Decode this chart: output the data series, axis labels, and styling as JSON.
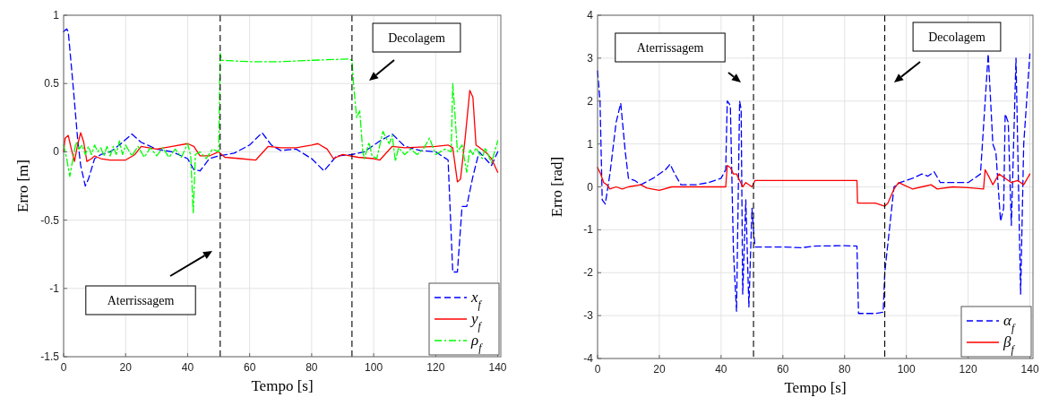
{
  "chart_data": [
    {
      "type": "line",
      "xlabel": "Tempo [s]",
      "ylabel": "Erro [m]",
      "xlim": [
        0,
        141
      ],
      "ylim": [
        -1.5,
        1
      ],
      "xticks": [
        0,
        20,
        40,
        60,
        80,
        100,
        120,
        140
      ],
      "yticks": [
        -1.5,
        -1,
        -0.5,
        0,
        0.5,
        1
      ],
      "grid": true,
      "legend": "bottom right",
      "series": [
        {
          "name": "x$_{f}$",
          "color": "#0000ff",
          "line_style": "dashed",
          "x": [
            0,
            1,
            1.5,
            3,
            4.5,
            5.5,
            7,
            8,
            10,
            12,
            15,
            18,
            22,
            25,
            30,
            35,
            40,
            42,
            44,
            47,
            50,
            55,
            60,
            64,
            67,
            70,
            75,
            80,
            84,
            88,
            93,
            97,
            102,
            106,
            110,
            115,
            120,
            124,
            125.5,
            127,
            128.5,
            130,
            132,
            134,
            136,
            138,
            140
          ],
          "values": [
            0.88,
            0.9,
            0.88,
            0.5,
            0.1,
            -0.1,
            -0.25,
            -0.2,
            -0.05,
            -0.02,
            0,
            0.05,
            0.13,
            0.07,
            0.02,
            0,
            -0.05,
            -0.13,
            -0.14,
            -0.05,
            -0.03,
            -0.01,
            0.05,
            0.14,
            0.05,
            0.01,
            0.02,
            -0.05,
            -0.14,
            -0.03,
            -0.02,
            0,
            0.08,
            0.13,
            0.04,
            0.01,
            0,
            -0.06,
            -0.88,
            -0.88,
            -0.4,
            -0.4,
            -0.18,
            0,
            -0.05,
            -0.1,
            0
          ]
        },
        {
          "name": "y$_{f}$",
          "color": "#ff0000",
          "line_style": "solid",
          "x": [
            0,
            0.5,
            1.5,
            2.5,
            3.5,
            4.5,
            5.5,
            6.5,
            7.5,
            9,
            10,
            12,
            15,
            20,
            23,
            25,
            30,
            35,
            40,
            42,
            44,
            47,
            50,
            52,
            57,
            62,
            66,
            70,
            75,
            80,
            82,
            85,
            87,
            90,
            95,
            100,
            102,
            106,
            110,
            120,
            124,
            125.5,
            127,
            128,
            129.5,
            131,
            132,
            133,
            136,
            138,
            140
          ],
          "values": [
            0,
            0.1,
            0.12,
            0.02,
            -0.07,
            0.05,
            0.14,
            0.07,
            -0.07,
            -0.05,
            -0.03,
            -0.05,
            -0.06,
            -0.06,
            -0.02,
            0.04,
            0.02,
            0.04,
            0.06,
            0.04,
            -0.03,
            -0.03,
            0,
            -0.04,
            -0.05,
            -0.06,
            0.04,
            0.03,
            0.03,
            0.05,
            0.06,
            0.02,
            -0.05,
            -0.02,
            -0.04,
            -0.05,
            -0.06,
            0.04,
            0.03,
            0.04,
            0.05,
            0.03,
            -0.22,
            -0.2,
            0.1,
            0.45,
            0.4,
            0.05,
            0,
            -0.05,
            -0.15
          ]
        },
        {
          "name": "ρ$_{f}$",
          "color": "#00ff00",
          "line_style": "dashdot",
          "x": [
            0,
            1,
            2,
            3,
            4,
            5,
            6,
            7,
            8,
            9,
            10,
            11,
            12,
            13,
            14,
            15,
            16,
            17,
            18,
            19,
            20,
            22,
            24,
            26,
            28,
            30,
            32,
            34,
            36,
            38,
            40,
            41,
            41.8,
            42.5,
            44,
            46,
            48,
            50,
            50.5,
            51,
            60,
            70,
            80,
            92,
            93,
            93.5,
            94.5,
            95.5,
            96.5,
            97,
            98.5,
            99.5,
            101,
            102,
            103,
            104,
            105,
            106,
            107,
            108,
            110,
            112,
            114,
            116,
            118,
            120,
            123,
            125,
            125.5,
            126,
            127,
            128.5,
            130,
            131,
            132,
            133,
            135,
            136,
            138,
            140
          ],
          "values": [
            0.05,
            -0.05,
            -0.18,
            -0.05,
            0.07,
            0.02,
            0.05,
            -0.02,
            0.04,
            -0.02,
            0.05,
            0,
            0.03,
            -0.03,
            0.04,
            -0.03,
            0.04,
            -0.02,
            0.08,
            -0.02,
            0.05,
            -0.03,
            0.04,
            -0.04,
            0.03,
            -0.03,
            0.03,
            -0.04,
            0.02,
            -0.04,
            0.06,
            -0.03,
            -0.45,
            -0.02,
            0,
            -0.05,
            0.02,
            0,
            0.72,
            0.67,
            0.66,
            0.66,
            0.67,
            0.68,
            0.67,
            0.5,
            0.25,
            0.3,
            0,
            -0.05,
            0.07,
            -0.03,
            -0.05,
            0.05,
            0.15,
            0.1,
            0.06,
            0.12,
            -0.07,
            0.03,
            -0.02,
            0.02,
            -0.02,
            0.02,
            0.1,
            -0.02,
            0.02,
            0,
            0.5,
            0.35,
            0,
            0.05,
            -0.15,
            0.02,
            -0.02,
            0.03,
            -0.05,
            0.03,
            -0.08,
            0.08
          ]
        }
      ],
      "ref_lines": [
        {
          "axis": "x",
          "value": 50.5,
          "color": "#000000",
          "line_style": "dashed"
        },
        {
          "axis": "x",
          "value": 93,
          "color": "#000000",
          "line_style": "dashed"
        }
      ],
      "annotations": [
        "Aterrissagem",
        "Decolagem"
      ]
    },
    {
      "type": "line",
      "xlabel": "Tempo [s]",
      "ylabel": "Erro [rad]",
      "xlim": [
        0,
        141
      ],
      "ylim": [
        -4,
        4
      ],
      "xticks": [
        0,
        20,
        40,
        60,
        80,
        100,
        120,
        140
      ],
      "yticks": [
        -4,
        -3,
        -2,
        -1,
        0,
        1,
        2,
        3,
        4
      ],
      "grid": true,
      "legend": "bottom right",
      "series": [
        {
          "name": "α$_{f}$",
          "color": "#0000ff",
          "line_style": "dashed",
          "x": [
            0,
            0.8,
            1.5,
            2.5,
            4,
            6,
            7.5,
            9,
            10,
            12,
            14,
            18,
            22,
            23.5,
            25,
            27,
            32,
            36,
            40,
            41.5,
            42,
            43,
            44,
            45,
            46,
            46.5,
            47,
            48,
            49,
            50,
            50.5,
            51,
            60,
            66,
            70,
            80,
            84,
            84.5,
            90,
            92.5,
            93,
            94.5,
            96,
            98,
            102,
            105,
            107,
            109,
            111,
            115,
            120,
            124,
            126.5,
            127,
            128,
            129,
            130.5,
            131.5,
            132,
            133,
            134,
            135.5,
            136.5,
            137,
            138,
            139.5,
            140
          ],
          "values": [
            2.7,
            2,
            -0.3,
            -0.4,
            0.3,
            1.5,
            1.95,
            0.8,
            0.2,
            0.15,
            0.05,
            0.2,
            0.4,
            0.53,
            0.3,
            0.05,
            0.05,
            0.1,
            0.2,
            0.4,
            2,
            1.9,
            -1.5,
            -2.9,
            2,
            1.8,
            -2.5,
            -0.3,
            -2.8,
            -0.5,
            -1,
            -1.4,
            -1.4,
            -1.42,
            -1.38,
            -1.37,
            -1.38,
            -2.95,
            -2.95,
            -2.92,
            -2,
            -1,
            0,
            0.1,
            0.2,
            0.3,
            0.25,
            0.35,
            0.1,
            0.1,
            0.1,
            0.3,
            3.1,
            null,
            1,
            0.8,
            -0.8,
            -0.5,
            1.7,
            1.5,
            -0.9,
            3,
            null,
            -2.5,
            1,
            null,
            3.1
          ]
        },
        {
          "name": "β$_{f}$",
          "color": "#ff0000",
          "line_style": "solid",
          "x": [
            0,
            1,
            2,
            3,
            4,
            6,
            8,
            10,
            14,
            16,
            20,
            24,
            28,
            32,
            36,
            40,
            41.5,
            42,
            43,
            44,
            45,
            46,
            47,
            48,
            50,
            51,
            60,
            70,
            84,
            84.2,
            90,
            93,
            94,
            96,
            97.5,
            99,
            102,
            105,
            108,
            110,
            115,
            120,
            125,
            125.5,
            127,
            128,
            130,
            132,
            134,
            136,
            138,
            140
          ],
          "values": [
            0.45,
            0.3,
            0.1,
            0.05,
            -0.05,
            0,
            -0.05,
            0,
            0.05,
            -0.03,
            -0.08,
            0,
            0,
            0,
            0,
            0,
            0,
            0.5,
            0.45,
            0.3,
            0.3,
            0.15,
            0,
            0.1,
            0,
            0.15,
            0.15,
            0.15,
            0.15,
            -0.38,
            -0.38,
            -0.45,
            -0.38,
            -0.05,
            0.1,
            0.05,
            -0.05,
            0,
            0.05,
            -0.05,
            0,
            -0.02,
            -0.05,
            0.4,
            0.2,
            0.05,
            0.3,
            0.2,
            0.1,
            0.15,
            0.05,
            0.3
          ]
        }
      ],
      "ref_lines": [
        {
          "axis": "x",
          "value": 50.5,
          "color": "#000000",
          "line_style": "dashed"
        },
        {
          "axis": "x",
          "value": 93,
          "color": "#000000",
          "line_style": "dashed"
        }
      ],
      "annotations": [
        "Aterrissagem",
        "Decolagem"
      ]
    }
  ]
}
